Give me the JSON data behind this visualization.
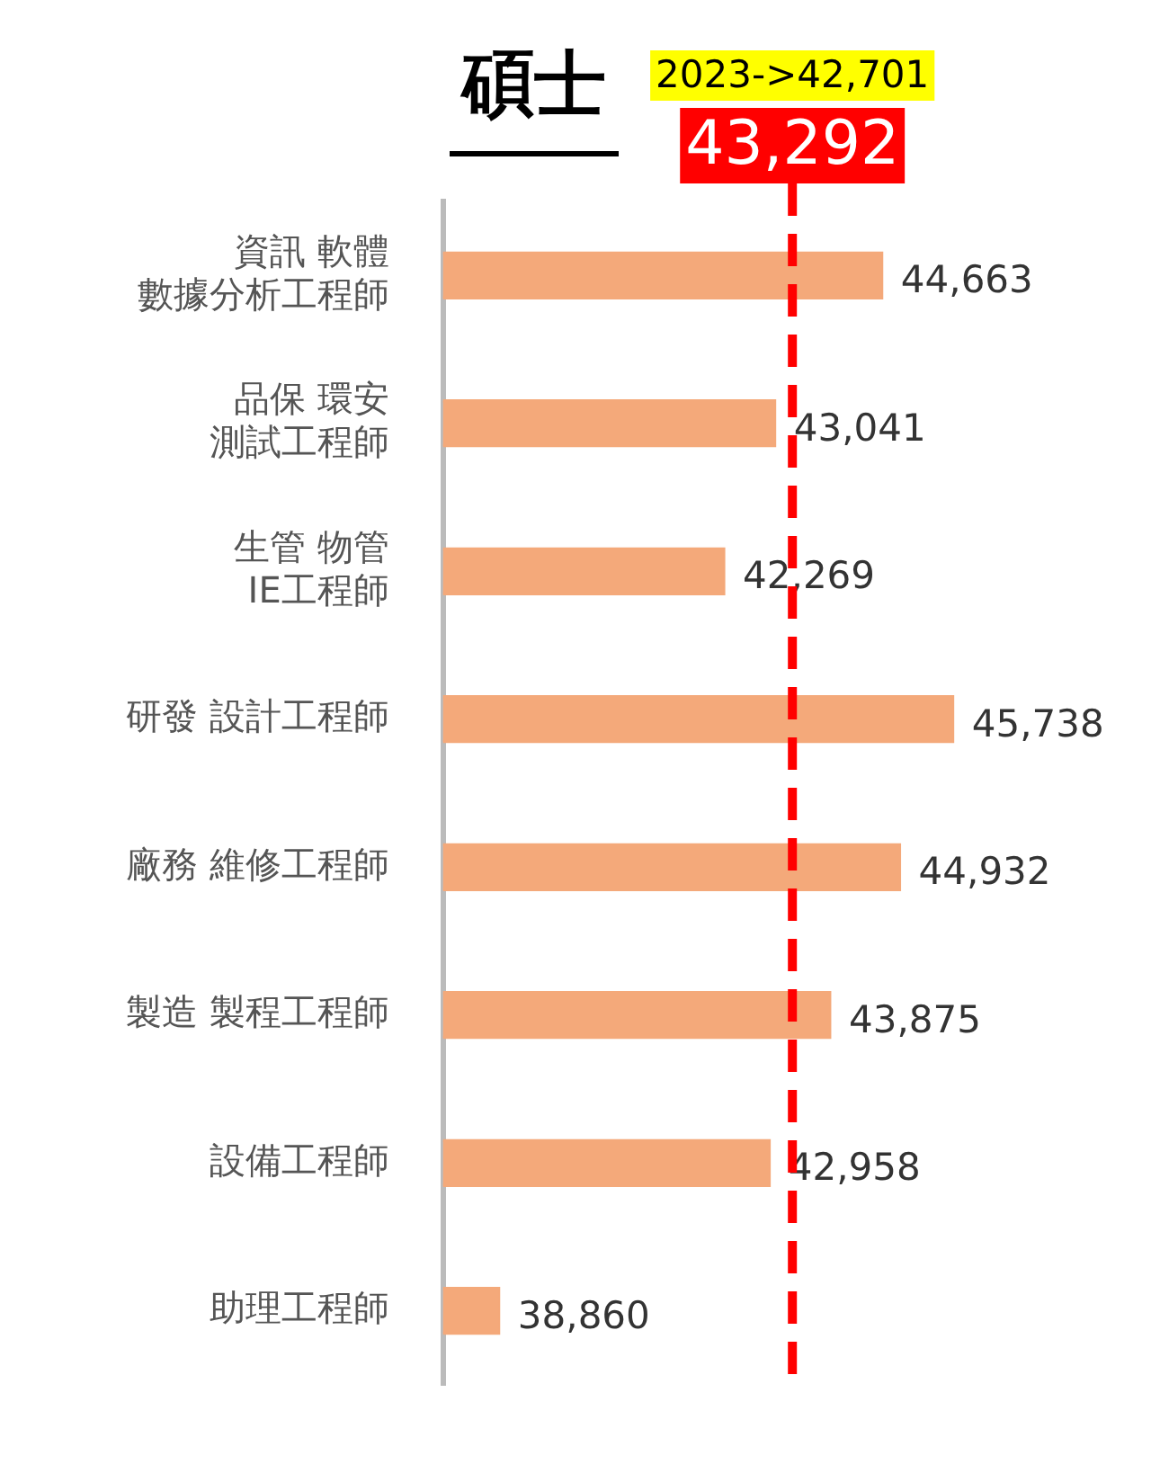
{
  "chart_data": {
    "type": "bar",
    "orientation": "horizontal",
    "title": "碩士",
    "categories": [
      "資訊 軟體數據分析工程師",
      "品保 環安測試工程師",
      "生管 物管IE工程師",
      "研發 設計工程師",
      "廠務 維修工程師",
      "製造 製程工程師",
      "設備工程師",
      "助理工程師"
    ],
    "values": [
      44663,
      43041,
      42269,
      45738,
      44932,
      43875,
      42958,
      38860
    ],
    "value_labels": [
      "44,663",
      "43,041",
      "42,269",
      "45,738",
      "44,932",
      "43,875",
      "42,958",
      "38,860"
    ],
    "color": "#f4a97a",
    "tick_labels": "y",
    "ref_lines": [
      {
        "axis": "x",
        "value": 43292,
        "label": "43,292",
        "color": "#ff0000",
        "line_style": "dashed"
      }
    ],
    "annotations": [
      "2023->42,701"
    ]
  }
}
